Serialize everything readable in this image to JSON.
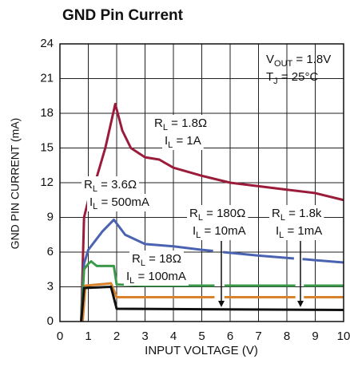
{
  "chart_data": {
    "type": "line",
    "title": "GND Pin Current",
    "x_label": "INPUT VOLTAGE (V)",
    "y_label": "GND PIN CURRENT (mA)",
    "xlim": [
      0,
      10
    ],
    "ylim": [
      0,
      24
    ],
    "xticks": [
      0,
      1,
      2,
      3,
      4,
      5,
      6,
      7,
      8,
      9,
      10
    ],
    "yticks": [
      0,
      3,
      6,
      9,
      12,
      15,
      18,
      21,
      24
    ],
    "grid": true,
    "series": [
      {
        "color": "#9b1b3b",
        "x": [
          0.75,
          0.85,
          1.0,
          1.3,
          1.6,
          1.95,
          2.2,
          2.5,
          3,
          3.5,
          4,
          5,
          6,
          7,
          8,
          9,
          10
        ],
        "values": [
          0,
          9,
          10.5,
          12.5,
          15,
          18.8,
          16.5,
          15,
          14.2,
          14,
          13.3,
          12.6,
          12,
          11.7,
          11.4,
          11.1,
          10.5
        ]
      },
      {
        "color": "#4a63b0",
        "x": [
          0.75,
          0.85,
          1.0,
          1.5,
          1.9,
          2.3,
          3,
          4,
          5,
          5.4,
          5.55,
          5.75,
          7,
          8,
          8.25,
          8.4,
          8.55,
          9,
          10
        ],
        "values": [
          0,
          5,
          6.2,
          7.8,
          8.8,
          7.5,
          6.7,
          6.5,
          6.2,
          6.1,
          null,
          6.0,
          5.7,
          5.5,
          5.45,
          null,
          5.4,
          5.3,
          5.1
        ]
      },
      {
        "color": "#3a9a4a",
        "x": [
          0.75,
          0.85,
          1.0,
          1.1,
          1.3,
          1.6,
          1.9,
          2.0,
          3,
          5.45,
          5.6,
          5.8,
          8.3,
          8.45,
          8.6,
          10
        ],
        "values": [
          0,
          4.5,
          5.0,
          5.2,
          4.8,
          4.8,
          4.8,
          3.2,
          3.1,
          3.1,
          null,
          3.1,
          3.1,
          null,
          3.1,
          3.1
        ]
      },
      {
        "color": "#d9822b",
        "x": [
          0.8,
          0.9,
          1.8,
          2.0,
          5.45,
          5.6,
          5.8,
          8.3,
          8.45,
          8.6,
          10
        ],
        "values": [
          0,
          3.1,
          3.3,
          2.1,
          2.1,
          null,
          2.1,
          2.1,
          null,
          2.1,
          2.1
        ]
      },
      {
        "color": "#111111",
        "x": [
          0.75,
          0.85,
          1.8,
          2.0,
          10
        ],
        "values": [
          0,
          2.9,
          3.0,
          1.1,
          1.0
        ]
      }
    ],
    "annotations": [
      {
        "parts": [
          "V",
          "OUT",
          " = 1.8V"
        ]
      },
      {
        "parts": [
          "T",
          "J",
          " = 25°C"
        ]
      },
      {
        "parts": [
          "R",
          "L",
          " = 1.8Ω"
        ]
      },
      {
        "parts": [
          "I",
          "L",
          " = 1A"
        ]
      },
      {
        "parts": [
          "R",
          "L",
          " = 3.6Ω"
        ]
      },
      {
        "parts": [
          "I",
          "L",
          " = 500mA"
        ]
      },
      {
        "parts": [
          "R",
          "L",
          " = 180Ω"
        ]
      },
      {
        "parts": [
          "I",
          "L",
          " = 10mA"
        ]
      },
      {
        "parts": [
          "R",
          "L",
          " = 1.8k"
        ]
      },
      {
        "parts": [
          "I",
          "L",
          " = 1mA"
        ]
      },
      {
        "parts": [
          "R",
          "L",
          " = 18Ω"
        ]
      },
      {
        "parts": [
          "I",
          "L",
          " = 100mA"
        ]
      }
    ]
  }
}
